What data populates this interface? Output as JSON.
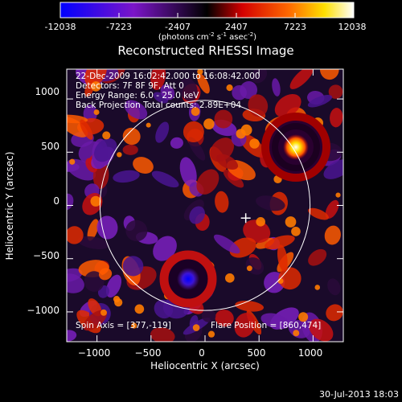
{
  "chart_data": {
    "type": "heatmap",
    "title": "Reconstructed RHESSI Image",
    "xlabel": "Heliocentric X (arcsec)",
    "ylabel": "Heliocentric Y (arcsec)",
    "xlim": [
      -1280,
      1280
    ],
    "ylim": [
      -1280,
      1280
    ],
    "x_ticks": [
      -1000,
      -500,
      0,
      500,
      1000
    ],
    "y_ticks": [
      -1000,
      -500,
      0,
      500,
      1000
    ],
    "colorbar": {
      "ticks": [
        "-12038",
        "-7223",
        "-2407",
        "2407",
        "7223",
        "12038"
      ],
      "unit_prefix": "(photons cm",
      "unit_sup1": "-2",
      "unit_mid": " s",
      "unit_sup2": "-1",
      "unit_mid2": " asec",
      "unit_sup3": "-2",
      "unit_suffix": ")",
      "range": [
        -12038,
        12038
      ]
    },
    "info_lines": [
      "22-Dec-2009 16:02:42.000 to 16:08:42.000",
      "Detectors: 7F 8F 9F, Att 0",
      "Energy Range: 6.0 - 25.0 keV",
      "Back Projection   Total counts: 2.89E+04"
    ],
    "spin_axis_text": "Spin Axis = [377,-119]",
    "flare_position_text": "Flare Position = [860,474]",
    "spin_axis": [
      377,
      -119
    ],
    "flare_position": [
      860,
      474
    ],
    "solar_limb_radius": 972,
    "footer": "30-Jul-2013 18:03"
  }
}
